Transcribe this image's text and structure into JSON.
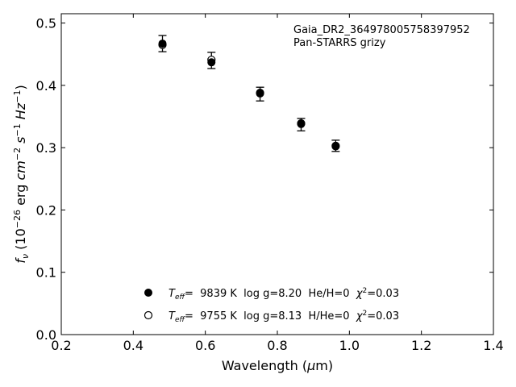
{
  "chart_data": {
    "type": "scatter",
    "x_ticks": [
      "0.2",
      "0.4",
      "0.6",
      "0.8",
      "1.0",
      "1.2",
      "1.4"
    ],
    "y_ticks": [
      "0.0",
      "0.1",
      "0.2",
      "0.3",
      "0.4",
      "0.5"
    ],
    "xlim": [
      0.2,
      1.4
    ],
    "ylim": [
      0.0,
      0.515
    ],
    "xlabel_text": "Wavelength (",
    "xlabel_symbol": "μ",
    "xlabel_tail": "m)",
    "ylabel_f": "f",
    "ylabel_sub": "ν",
    "ylabel_open": " (10",
    "ylabel_exp1": "−26",
    "ylabel_erg": " erg ",
    "ylabel_cm": "cm",
    "ylabel_exp2": "−2",
    "ylabel_s": " s",
    "ylabel_exp3": "−1",
    "ylabel_hz": " Hz",
    "ylabel_exp4": "−1",
    "ylabel_close": ")",
    "annotation": [
      "Gaia_DR2_364978005758397952",
      "Pan-STARRS grizy"
    ],
    "grid": false,
    "legend_position": "lower-center",
    "legend_entries": [
      {
        "marker": "filled",
        "label_a": "T",
        "label_sub": "eff",
        "label_b": "=  9839 K  log g=8.20  He/H=0  ",
        "label_chi": "χ",
        "label_sup": "2",
        "label_c": "=0.03"
      },
      {
        "marker": "open",
        "label_a": "T",
        "label_sub": "eff",
        "label_b": "=  9755 K  log g=8.13  H/He=0  ",
        "label_chi": "χ",
        "label_sup": "2",
        "label_c": "=0.03"
      }
    ],
    "series": [
      {
        "role": "observed",
        "x": [
          0.481,
          0.617,
          0.752,
          0.866,
          0.962
        ],
        "y": [
          0.467,
          0.44,
          0.386,
          0.337,
          0.303
        ],
        "yerr": [
          0.013,
          0.013,
          0.011,
          0.01,
          0.009
        ]
      },
      {
        "role": "model-filled",
        "x": [
          0.481,
          0.617,
          0.752,
          0.866,
          0.962
        ],
        "y": [
          0.467,
          0.437,
          0.387,
          0.338,
          0.302
        ]
      },
      {
        "role": "model-open",
        "x": [
          0.481,
          0.617,
          0.752,
          0.866,
          0.962
        ],
        "y": [
          0.465,
          0.441,
          0.388,
          0.339,
          0.303
        ]
      }
    ]
  }
}
